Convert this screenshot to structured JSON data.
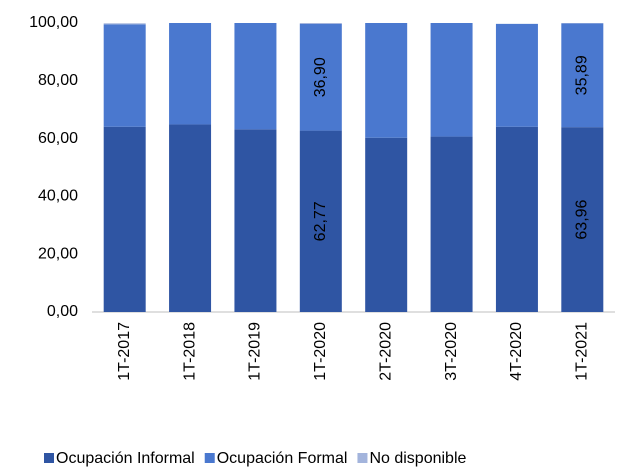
{
  "chart_data": {
    "type": "stacked_bar",
    "categories": [
      "1T-2017",
      "1T-2018",
      "1T-2019",
      "1T-2020",
      "2T-2020",
      "3T-2020",
      "4T-2020",
      "1T-2021"
    ],
    "series": [
      {
        "name": "Ocupación Informal",
        "color": "#2f55a3",
        "values": [
          64.1,
          64.9,
          63.2,
          62.77,
          60.3,
          60.7,
          64.1,
          63.96
        ],
        "value_labels": [
          null,
          null,
          null,
          "62,77",
          null,
          null,
          null,
          "63,96"
        ]
      },
      {
        "name": "Ocupación Formal",
        "color": "#4a78cf",
        "values": [
          35.4,
          35.1,
          36.8,
          36.9,
          39.7,
          39.3,
          35.6,
          35.89
        ],
        "value_labels": [
          null,
          null,
          null,
          "36,90",
          null,
          null,
          null,
          "35,89"
        ]
      },
      {
        "name": "No disponible",
        "color": "#a3b4dc",
        "values": [
          0.4,
          0,
          0,
          0.33,
          0,
          0,
          0,
          0.15
        ]
      }
    ],
    "ylim": [
      0,
      100
    ],
    "yticks": [
      {
        "value": 0,
        "label": "0,00"
      },
      {
        "value": 20,
        "label": "20,00"
      },
      {
        "value": 40,
        "label": "40,00"
      },
      {
        "value": 60,
        "label": "60,00"
      },
      {
        "value": 80,
        "label": "80,00"
      },
      {
        "value": 100,
        "label": "100,00"
      }
    ]
  }
}
